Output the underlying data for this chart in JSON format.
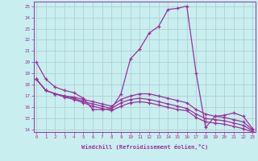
{
  "xlabel": "Windchill (Refroidissement éolien,°C)",
  "bg_color": "#c8eef0",
  "line_color": "#993399",
  "grid_color": "#aacccc",
  "hours": [
    0,
    1,
    2,
    3,
    4,
    5,
    6,
    7,
    8,
    9,
    10,
    11,
    12,
    13,
    14,
    15,
    16,
    17,
    18,
    19,
    20,
    21,
    22,
    23
  ],
  "line1": [
    20.0,
    18.5,
    17.8,
    17.5,
    17.3,
    16.8,
    15.8,
    15.8,
    15.9,
    17.2,
    20.3,
    21.2,
    22.6,
    23.2,
    24.7,
    24.8,
    25.0,
    19.0,
    14.2,
    15.2,
    15.3,
    15.5,
    15.2,
    14.1
  ],
  "line2": [
    18.5,
    17.5,
    17.2,
    17.0,
    16.9,
    16.7,
    16.5,
    16.3,
    16.1,
    16.7,
    17.0,
    17.2,
    17.2,
    17.0,
    16.8,
    16.6,
    16.4,
    15.8,
    15.4,
    15.2,
    15.1,
    14.9,
    14.7,
    14.0
  ],
  "line3": [
    18.5,
    17.5,
    17.2,
    17.0,
    16.8,
    16.5,
    16.3,
    16.1,
    15.9,
    16.4,
    16.7,
    16.8,
    16.7,
    16.5,
    16.3,
    16.1,
    15.9,
    15.4,
    15.0,
    14.9,
    14.8,
    14.6,
    14.4,
    13.9
  ],
  "line4": [
    18.5,
    17.5,
    17.2,
    16.9,
    16.7,
    16.4,
    16.1,
    15.9,
    15.7,
    16.1,
    16.4,
    16.5,
    16.4,
    16.2,
    16.0,
    15.8,
    15.7,
    15.1,
    14.7,
    14.6,
    14.5,
    14.3,
    14.1,
    13.8
  ],
  "ylim_min": 14,
  "ylim_max": 25,
  "xlim_min": 0,
  "xlim_max": 23
}
